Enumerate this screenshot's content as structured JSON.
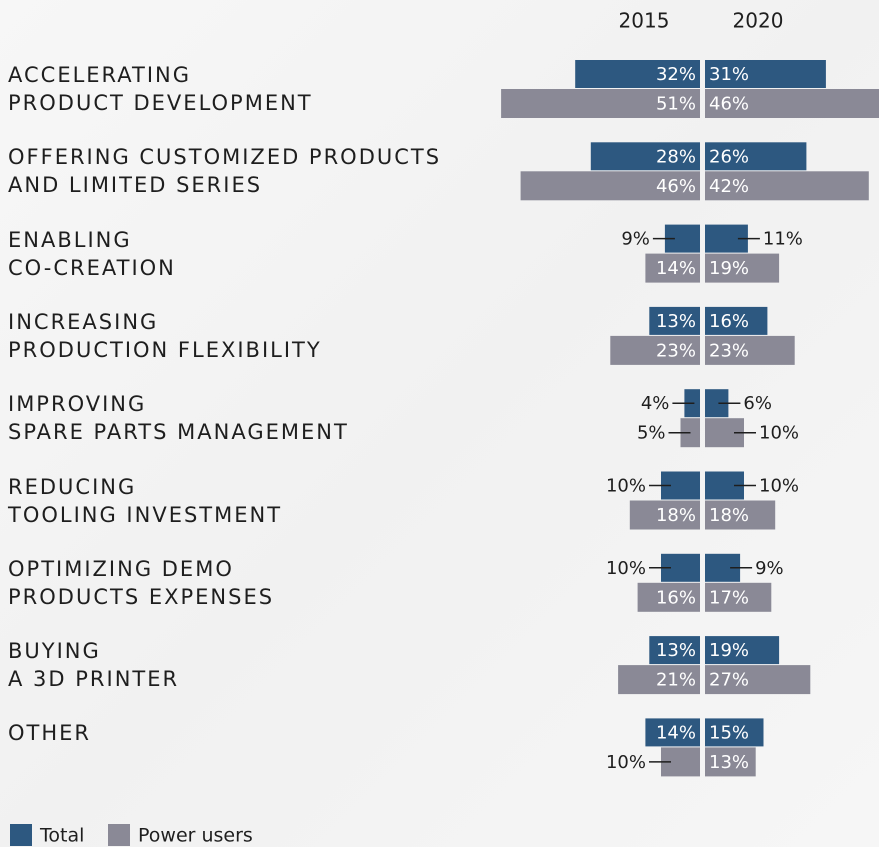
{
  "chart_data": {
    "type": "butterfly",
    "panels": [
      "2015",
      "2020"
    ],
    "categories": [
      "ACCELERATING\nPRODUCT DEVELOPMENT",
      "OFFERING CUSTOMIZED PRODUCTS\nAND LIMITED SERIES",
      "ENABLING\nCO-CREATION",
      "INCREASING\nPRODUCTION FLEXIBILITY",
      "IMPROVING\nSPARE PARTS MANAGEMENT",
      "REDUCING\nTOOLING INVESTMENT",
      "OPTIMIZING DEMO\nPRODUCTS EXPENSES",
      "BUYING\nA 3D PRINTER",
      "OTHER"
    ],
    "series": [
      {
        "name": "Total",
        "color": "#2d5880",
        "values": [
          [
            32,
            28,
            9,
            13,
            4,
            10,
            10,
            13,
            14
          ],
          [
            31,
            26,
            11,
            16,
            6,
            10,
            9,
            19,
            15
          ]
        ],
        "value_labels": [
          [
            "32%",
            "28%",
            "9%",
            "13%",
            "4%",
            "10%",
            "10%",
            "13%",
            "14%"
          ],
          [
            "31%",
            "26%",
            "11%",
            "16%",
            "6%",
            "10%",
            "9%",
            "19%",
            "15%"
          ]
        ]
      },
      {
        "name": "Power users",
        "color": "#8a8996",
        "values": [
          [
            51,
            46,
            14,
            23,
            5,
            18,
            16,
            21,
            10
          ],
          [
            46,
            42,
            19,
            23,
            10,
            18,
            17,
            27,
            13
          ]
        ],
        "value_labels": [
          [
            "51%",
            "46%",
            "14%",
            "23%",
            "5%",
            "18%",
            "16%",
            "21%",
            "10%"
          ],
          [
            "46%",
            "42%",
            "19%",
            "23%",
            "10%",
            "18%",
            "17%",
            "27%",
            "13%"
          ]
        ]
      }
    ]
  }
}
